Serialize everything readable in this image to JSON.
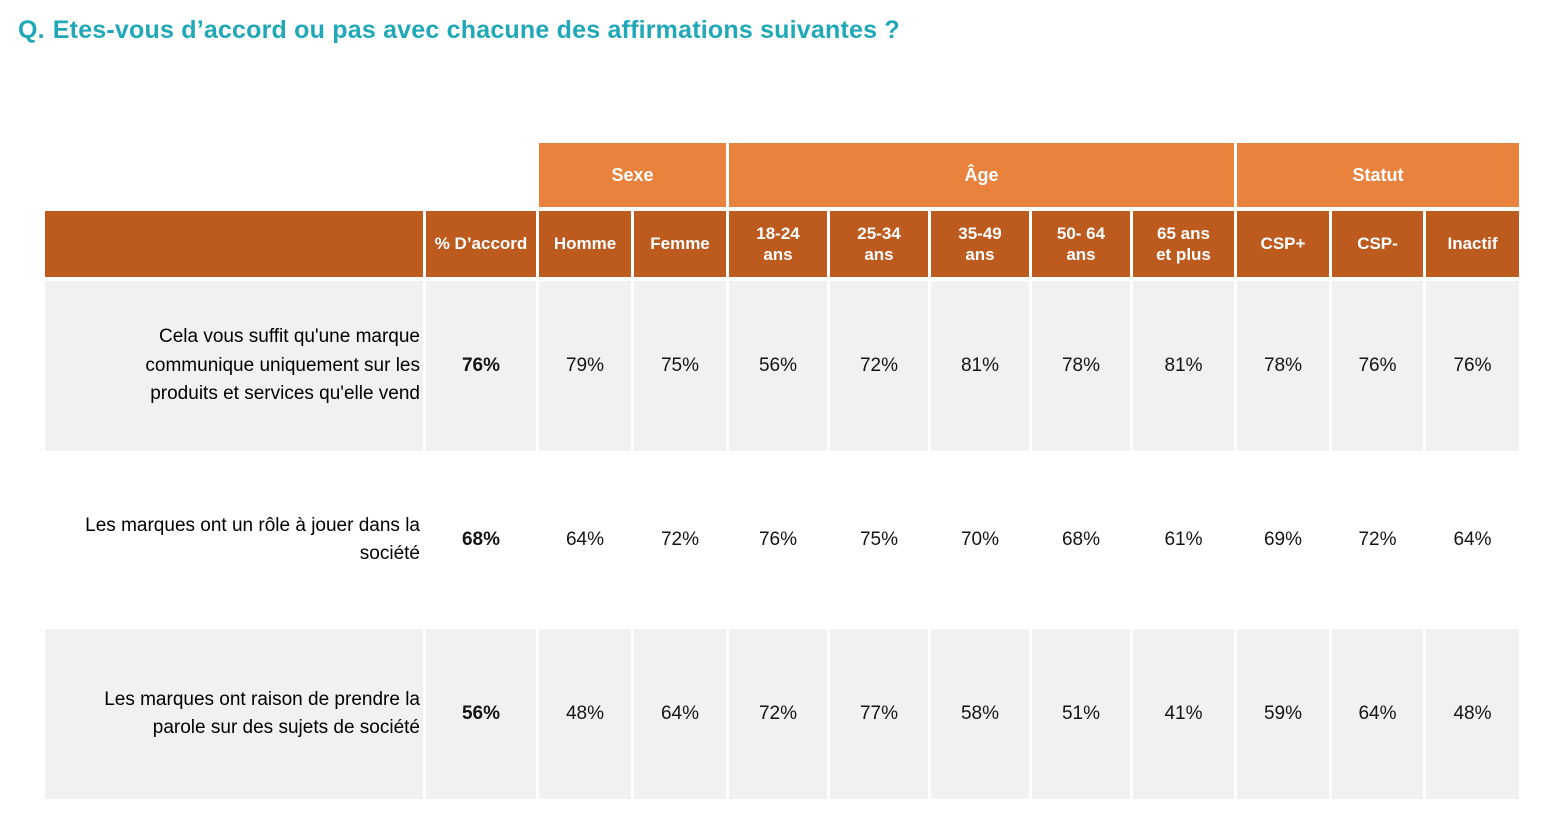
{
  "title": {
    "prefix": "Q.",
    "text": "Etes-vous d’accord ou pas avec chacune des affirmations suivantes ?"
  },
  "colors": {
    "title_teal": "#21a8b8",
    "group_header_orange": "#e8823d",
    "column_header_orange": "#bd5a1e",
    "row_stripe_gray": "#f1f1f1",
    "header_text": "#ffffff",
    "body_text": "#141414"
  },
  "chart_data": {
    "type": "table",
    "title": "Q. Etes-vous d’accord ou pas avec chacune des affirmations suivantes ?",
    "group_headers": [
      {
        "label": "Sexe",
        "span": 2
      },
      {
        "label": "Âge",
        "span": 5
      },
      {
        "label": "Statut",
        "span": 3
      }
    ],
    "column_headers": [
      "% D’accord",
      "Homme",
      "Femme",
      "18-24 ans",
      "25-34 ans",
      "35-49 ans",
      "50- 64 ans",
      "65 ans et plus",
      "CSP+",
      "CSP-",
      "Inactif"
    ],
    "rows": [
      {
        "label": "Cela vous suffit qu'une marque communique uniquement sur les produits et services qu'elle vend",
        "values": [
          "76%",
          "79%",
          "75%",
          "56%",
          "72%",
          "81%",
          "78%",
          "81%",
          "78%",
          "76%",
          "76%"
        ]
      },
      {
        "label": "Les marques ont un rôle à jouer dans la société",
        "values": [
          "68%",
          "64%",
          "72%",
          "76%",
          "75%",
          "70%",
          "68%",
          "61%",
          "69%",
          "72%",
          "64%"
        ]
      },
      {
        "label": "Les marques ont raison de prendre la parole sur des sujets de société",
        "values": [
          "56%",
          "48%",
          "64%",
          "72%",
          "77%",
          "58%",
          "51%",
          "41%",
          "59%",
          "64%",
          "48%"
        ]
      }
    ]
  }
}
